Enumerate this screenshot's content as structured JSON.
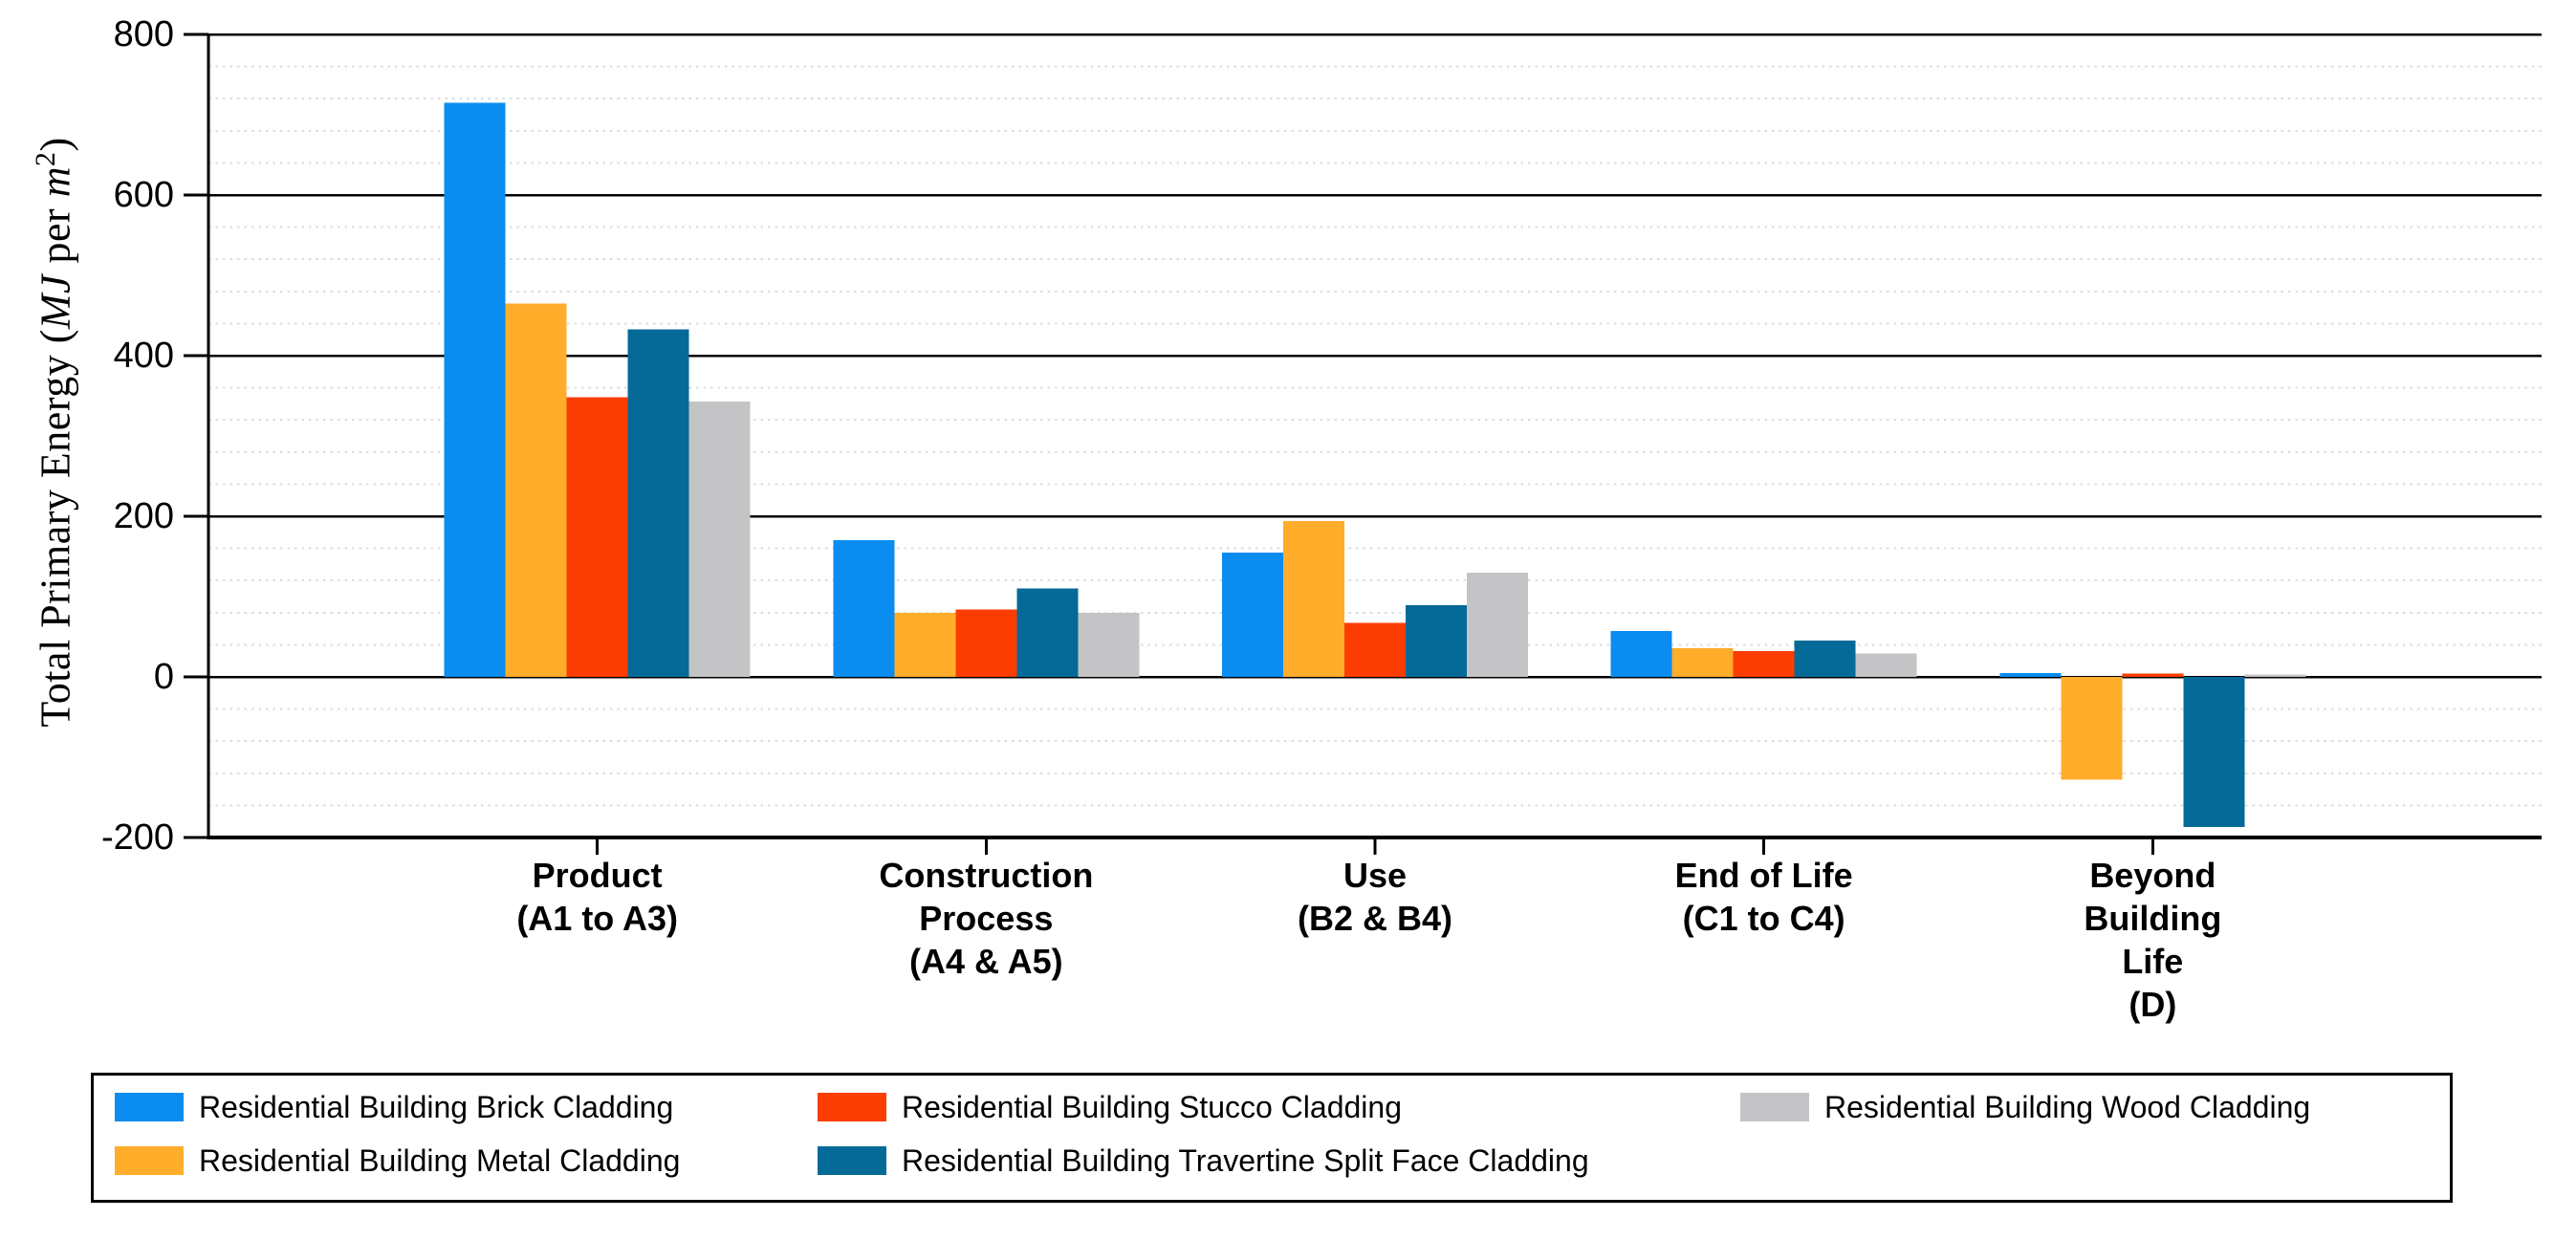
{
  "chart_data": {
    "type": "bar",
    "title": "",
    "ylabel": "Total Primary Energy (MJ per m^2)",
    "ylabel_parts": {
      "prefix": "Total Primary Energy (",
      "unit_energy": "MJ",
      "per": " per ",
      "unit_area": "m",
      "exponent": "2",
      "suffix": ")"
    },
    "xlabel": "",
    "ylim": [
      -200,
      800
    ],
    "y_major_step": 200,
    "y_minor_step": 40,
    "y_tick_labels": [
      "800",
      "600",
      "400",
      "200",
      "0",
      "-200"
    ],
    "grid": {
      "major": "solid black",
      "minor": "dotted light gray"
    },
    "legend_position": "bottom",
    "categories": [
      "Product (A1 to A3)",
      "Construction Process (A4 & A5)",
      "Use (B2 & B4)",
      "End of Life (C1 to C4)",
      "Beyond Building Life (D)"
    ],
    "category_label_lines": [
      [
        "Product",
        "(A1 to A3)"
      ],
      [
        "Construction",
        "Process",
        "(A4 & A5)"
      ],
      [
        "Use",
        "(B2 & B4)"
      ],
      [
        "End of Life",
        "(C1 to C4)"
      ],
      [
        "Beyond",
        "Building",
        "Life",
        "(D)"
      ]
    ],
    "series": [
      {
        "name": "Residential Building Brick Cladding",
        "color": "#0A8CF0",
        "values": [
          715,
          170,
          155,
          57,
          5
        ]
      },
      {
        "name": "Residential Building Metal Cladding",
        "color": "#FFAD2B",
        "values": [
          465,
          80,
          194,
          36,
          -128
        ]
      },
      {
        "name": "Residential Building Stucco Cladding",
        "color": "#FB3D02",
        "values": [
          348,
          84,
          67,
          32,
          4
        ]
      },
      {
        "name": "Residential Building Travertine Split Face Cladding",
        "color": "#056A97",
        "values": [
          433,
          110,
          89,
          45,
          -187
        ]
      },
      {
        "name": "Residential Building Wood Cladding",
        "color": "#C4C4C6",
        "values": [
          343,
          80,
          130,
          29,
          3
        ]
      }
    ]
  },
  "colors": {
    "background": "#FFFFFF",
    "text": "#000000",
    "grid_major": "#000000",
    "grid_minor": "#DCDCDC",
    "axis_spine": "#000000"
  }
}
